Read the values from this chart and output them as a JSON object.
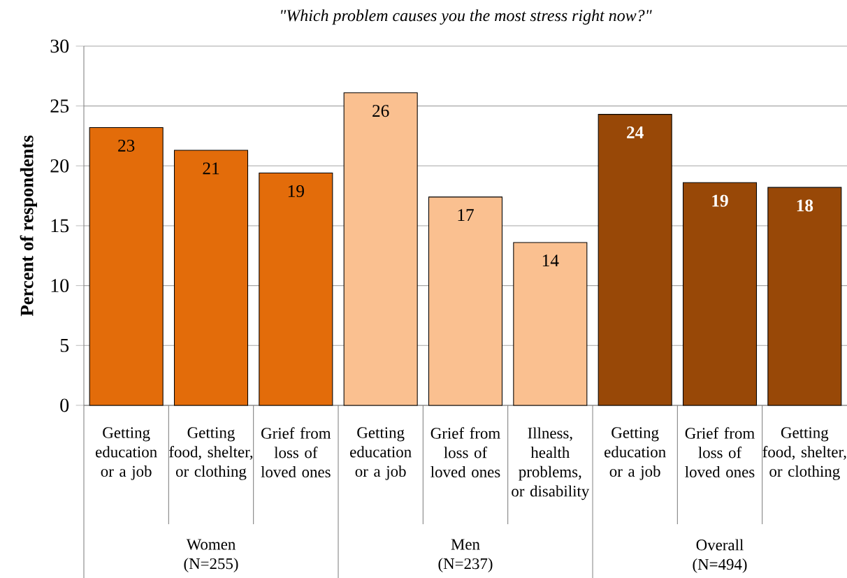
{
  "chart_data": {
    "type": "bar",
    "title": "\"Which problem causes you the most stress right now?\"",
    "ylabel": "Percent of respondents",
    "categories": [
      "Getting education or a job",
      "Getting food, shelter, or clothing",
      "Grief from loss of loved ones",
      "Getting education or a job",
      "Grief from loss of loved ones",
      "Illness, health problems, or disability",
      "Getting education or a job",
      "Grief from loss of loved ones",
      "Getting food, shelter, or clothing"
    ],
    "values": [
      23.2,
      21.3,
      19.4,
      26.1,
      17.4,
      13.6,
      24.3,
      18.6,
      18.2
    ],
    "value_labels": [
      "23",
      "21",
      "19",
      "26",
      "17",
      "14",
      "24",
      "19",
      "18"
    ],
    "colors": [
      "#e36c0a",
      "#e36c0a",
      "#e36c0a",
      "#fac090",
      "#fac090",
      "#fac090",
      "#984807",
      "#984807",
      "#984807"
    ],
    "ylim": [
      0,
      30
    ],
    "yticks": [
      0,
      5,
      10,
      15,
      20,
      25,
      30
    ],
    "grid": "y",
    "annotations": [
      "Women (N=255)",
      "Men (N=237)",
      "Overall (N=494)"
    ]
  }
}
